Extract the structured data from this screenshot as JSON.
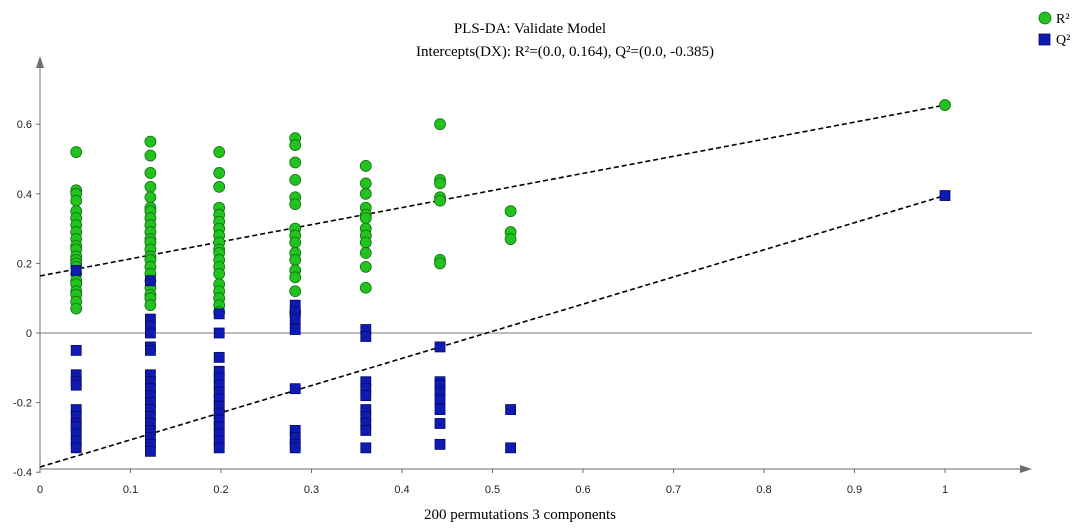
{
  "chart_data": {
    "type": "scatter",
    "title": "PLS-DA: Validate Model",
    "subtitle": "Intercepts(DX): R²=(0.0, 0.164), Q²=(0.0, -0.385)",
    "xlabel": "200 permutations 3 components",
    "ylabel": "",
    "xlim": [
      0,
      1.1
    ],
    "ylim": [
      -0.4,
      0.75
    ],
    "xticks": [
      "0",
      "0.1",
      "0.2",
      "0.3",
      "0.4",
      "0.5",
      "0.6",
      "0.7",
      "0.8",
      "0.9",
      "1"
    ],
    "yticks": [
      "-0.4",
      "-0.2",
      "0",
      "0.2",
      "0.4",
      "0.6"
    ],
    "grid": false,
    "legend_position": "top-right",
    "series": [
      {
        "name": "R²",
        "marker": "circle",
        "color": "#22c31f",
        "points": [
          [
            0.04,
            0.52
          ],
          [
            0.04,
            0.41
          ],
          [
            0.04,
            0.4
          ],
          [
            0.04,
            0.38
          ],
          [
            0.04,
            0.35
          ],
          [
            0.04,
            0.33
          ],
          [
            0.04,
            0.31
          ],
          [
            0.04,
            0.29
          ],
          [
            0.04,
            0.27
          ],
          [
            0.04,
            0.25
          ],
          [
            0.04,
            0.24
          ],
          [
            0.04,
            0.22
          ],
          [
            0.04,
            0.21
          ],
          [
            0.04,
            0.2
          ],
          [
            0.04,
            0.19
          ],
          [
            0.04,
            0.17
          ],
          [
            0.04,
            0.15
          ],
          [
            0.04,
            0.14
          ],
          [
            0.04,
            0.12
          ],
          [
            0.04,
            0.11
          ],
          [
            0.04,
            0.09
          ],
          [
            0.04,
            0.07
          ],
          [
            0.122,
            0.55
          ],
          [
            0.122,
            0.51
          ],
          [
            0.122,
            0.46
          ],
          [
            0.122,
            0.42
          ],
          [
            0.122,
            0.39
          ],
          [
            0.122,
            0.36
          ],
          [
            0.122,
            0.35
          ],
          [
            0.122,
            0.33
          ],
          [
            0.122,
            0.31
          ],
          [
            0.122,
            0.29
          ],
          [
            0.122,
            0.27
          ],
          [
            0.122,
            0.26
          ],
          [
            0.122,
            0.24
          ],
          [
            0.122,
            0.22
          ],
          [
            0.122,
            0.21
          ],
          [
            0.122,
            0.19
          ],
          [
            0.122,
            0.17
          ],
          [
            0.122,
            0.15
          ],
          [
            0.122,
            0.13
          ],
          [
            0.122,
            0.11
          ],
          [
            0.122,
            0.1
          ],
          [
            0.122,
            0.08
          ],
          [
            0.198,
            0.52
          ],
          [
            0.198,
            0.46
          ],
          [
            0.198,
            0.42
          ],
          [
            0.198,
            0.36
          ],
          [
            0.198,
            0.34
          ],
          [
            0.198,
            0.32
          ],
          [
            0.198,
            0.3
          ],
          [
            0.198,
            0.28
          ],
          [
            0.198,
            0.26
          ],
          [
            0.198,
            0.24
          ],
          [
            0.198,
            0.23
          ],
          [
            0.198,
            0.21
          ],
          [
            0.198,
            0.19
          ],
          [
            0.198,
            0.17
          ],
          [
            0.198,
            0.14
          ],
          [
            0.198,
            0.12
          ],
          [
            0.198,
            0.1
          ],
          [
            0.198,
            0.08
          ],
          [
            0.198,
            0.06
          ],
          [
            0.282,
            0.56
          ],
          [
            0.282,
            0.54
          ],
          [
            0.282,
            0.49
          ],
          [
            0.282,
            0.44
          ],
          [
            0.282,
            0.39
          ],
          [
            0.282,
            0.37
          ],
          [
            0.282,
            0.3
          ],
          [
            0.282,
            0.28
          ],
          [
            0.282,
            0.26
          ],
          [
            0.282,
            0.23
          ],
          [
            0.282,
            0.21
          ],
          [
            0.282,
            0.18
          ],
          [
            0.282,
            0.16
          ],
          [
            0.282,
            0.12
          ],
          [
            0.282,
            0.06
          ],
          [
            0.36,
            0.48
          ],
          [
            0.36,
            0.43
          ],
          [
            0.36,
            0.4
          ],
          [
            0.36,
            0.36
          ],
          [
            0.36,
            0.34
          ],
          [
            0.36,
            0.33
          ],
          [
            0.36,
            0.3
          ],
          [
            0.36,
            0.28
          ],
          [
            0.36,
            0.26
          ],
          [
            0.36,
            0.23
          ],
          [
            0.36,
            0.19
          ],
          [
            0.36,
            0.13
          ],
          [
            0.442,
            0.6
          ],
          [
            0.442,
            0.44
          ],
          [
            0.442,
            0.43
          ],
          [
            0.442,
            0.39
          ],
          [
            0.442,
            0.38
          ],
          [
            0.442,
            0.21
          ],
          [
            0.442,
            0.2
          ],
          [
            0.52,
            0.35
          ],
          [
            0.52,
            0.29
          ],
          [
            0.52,
            0.27
          ],
          [
            1.0,
            0.655
          ]
        ]
      },
      {
        "name": "Q²",
        "marker": "square",
        "color": "#0f1ab3",
        "points": [
          [
            0.04,
            0.18
          ],
          [
            0.04,
            -0.05
          ],
          [
            0.04,
            -0.12
          ],
          [
            0.04,
            -0.14
          ],
          [
            0.04,
            -0.15
          ],
          [
            0.04,
            -0.22
          ],
          [
            0.04,
            -0.24
          ],
          [
            0.04,
            -0.26
          ],
          [
            0.04,
            -0.27
          ],
          [
            0.04,
            -0.29
          ],
          [
            0.04,
            -0.31
          ],
          [
            0.04,
            -0.33
          ],
          [
            0.122,
            0.15
          ],
          [
            0.122,
            0.04
          ],
          [
            0.122,
            0.02
          ],
          [
            0.122,
            0.0
          ],
          [
            0.122,
            -0.04
          ],
          [
            0.122,
            -0.05
          ],
          [
            0.122,
            -0.12
          ],
          [
            0.122,
            -0.14
          ],
          [
            0.122,
            -0.16
          ],
          [
            0.122,
            -0.18
          ],
          [
            0.122,
            -0.2
          ],
          [
            0.122,
            -0.22
          ],
          [
            0.122,
            -0.24
          ],
          [
            0.122,
            -0.26
          ],
          [
            0.122,
            -0.28
          ],
          [
            0.122,
            -0.3
          ],
          [
            0.122,
            -0.32
          ],
          [
            0.122,
            -0.34
          ],
          [
            0.198,
            0.055
          ],
          [
            0.198,
            0.0
          ],
          [
            0.198,
            -0.07
          ],
          [
            0.198,
            -0.11
          ],
          [
            0.198,
            -0.13
          ],
          [
            0.198,
            -0.15
          ],
          [
            0.198,
            -0.17
          ],
          [
            0.198,
            -0.19
          ],
          [
            0.198,
            -0.21
          ],
          [
            0.198,
            -0.23
          ],
          [
            0.198,
            -0.25
          ],
          [
            0.198,
            -0.27
          ],
          [
            0.198,
            -0.29
          ],
          [
            0.198,
            -0.31
          ],
          [
            0.198,
            -0.33
          ],
          [
            0.282,
            0.08
          ],
          [
            0.282,
            0.06
          ],
          [
            0.282,
            0.04
          ],
          [
            0.282,
            0.01
          ],
          [
            0.282,
            -0.16
          ],
          [
            0.282,
            -0.28
          ],
          [
            0.282,
            -0.3
          ],
          [
            0.282,
            -0.32
          ],
          [
            0.282,
            -0.33
          ],
          [
            0.36,
            0.01
          ],
          [
            0.36,
            -0.01
          ],
          [
            0.36,
            -0.14
          ],
          [
            0.36,
            -0.16
          ],
          [
            0.36,
            -0.18
          ],
          [
            0.36,
            -0.22
          ],
          [
            0.36,
            -0.24
          ],
          [
            0.36,
            -0.26
          ],
          [
            0.36,
            -0.28
          ],
          [
            0.36,
            -0.33
          ],
          [
            0.442,
            -0.04
          ],
          [
            0.442,
            -0.14
          ],
          [
            0.442,
            -0.15
          ],
          [
            0.442,
            -0.17
          ],
          [
            0.442,
            -0.19
          ],
          [
            0.442,
            -0.22
          ],
          [
            0.442,
            -0.26
          ],
          [
            0.442,
            -0.32
          ],
          [
            0.52,
            -0.22
          ],
          [
            0.52,
            -0.33
          ],
          [
            1.0,
            0.395
          ]
        ]
      }
    ],
    "trend_lines": [
      {
        "series": "R²",
        "from": [
          0.0,
          0.164
        ],
        "to": [
          1.0,
          0.655
        ],
        "style": "dashed"
      },
      {
        "series": "Q²",
        "from": [
          0.0,
          -0.385
        ],
        "to": [
          1.0,
          0.395
        ],
        "style": "dashed"
      }
    ],
    "colors": {
      "axis": "#6e6e6e",
      "zero_line": "#7a7a7a",
      "trend": "#000000",
      "circle_stroke": "#156e12",
      "square_stroke": "#050a60"
    }
  }
}
